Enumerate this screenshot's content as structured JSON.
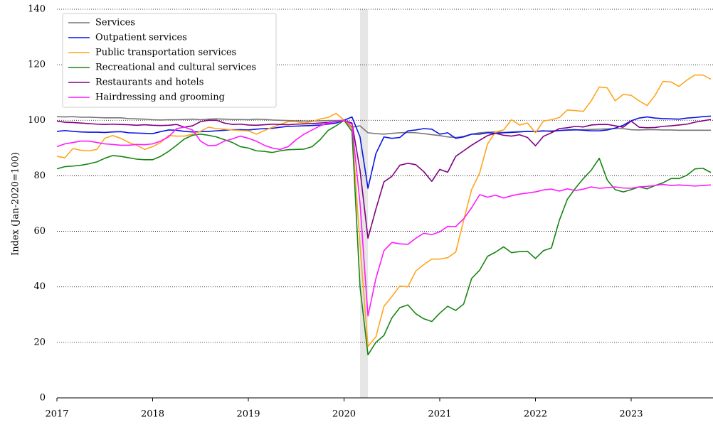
{
  "chart_data": {
    "type": "line",
    "ylabel": "Index (Jan-2020=100)",
    "x": [
      2017,
      2017.083,
      2017.167,
      2017.25,
      2017.333,
      2017.417,
      2017.5,
      2017.583,
      2017.667,
      2017.75,
      2017.833,
      2017.917,
      2018,
      2018.083,
      2018.167,
      2018.25,
      2018.333,
      2018.417,
      2018.5,
      2018.583,
      2018.667,
      2018.75,
      2018.833,
      2018.917,
      2019,
      2019.083,
      2019.167,
      2019.25,
      2019.333,
      2019.417,
      2019.5,
      2019.583,
      2019.667,
      2019.75,
      2019.833,
      2019.917,
      2020,
      2020.083,
      2020.167,
      2020.25,
      2020.333,
      2020.417,
      2020.5,
      2020.583,
      2020.667,
      2020.75,
      2020.833,
      2020.917,
      2021,
      2021.083,
      2021.167,
      2021.25,
      2021.333,
      2021.417,
      2021.5,
      2021.583,
      2021.667,
      2021.75,
      2021.833,
      2021.917,
      2022,
      2022.083,
      2022.167,
      2022.25,
      2022.333,
      2022.417,
      2022.5,
      2022.583,
      2022.667,
      2022.75,
      2022.833,
      2022.917,
      2023,
      2023.083,
      2023.167,
      2023.25,
      2023.333,
      2023.417,
      2023.5,
      2023.583,
      2023.667,
      2023.75,
      2023.833
    ],
    "series": [
      {
        "name": "Services",
        "color": "#777777",
        "values": [
          101.3,
          101.2,
          101.3,
          101.1,
          101.1,
          101,
          100.9,
          100.9,
          100.9,
          100.6,
          100.5,
          100.4,
          100.2,
          100.1,
          100.2,
          100.2,
          100.3,
          100.4,
          100.2,
          100.4,
          100.5,
          100.4,
          100.3,
          100.3,
          100.2,
          100.4,
          100.3,
          100.1,
          100,
          99.9,
          99.8,
          99.7,
          99.7,
          99.8,
          99.9,
          99.9,
          100,
          97.5,
          98,
          95.5,
          95.2,
          95,
          95.3,
          95.5,
          95.6,
          95.5,
          95.2,
          94.8,
          94.5,
          94,
          93.8,
          94.2,
          95,
          95.5,
          95.7,
          95.8,
          95.6,
          95.8,
          95.9,
          96,
          96,
          96.1,
          96.2,
          96.3,
          96.4,
          96.5,
          96.6,
          96.7,
          96.8,
          96.9,
          97,
          97,
          96.6,
          96.5,
          96.6,
          96.6,
          96.5,
          96.5,
          96.4,
          96.4,
          96.4,
          96.4,
          96.4
        ]
      },
      {
        "name": "Outpatient services",
        "color": "#0a14e6",
        "values": [
          96,
          96.3,
          96,
          95.8,
          95.7,
          95.7,
          95.6,
          95.8,
          95.9,
          95.5,
          95.4,
          95.3,
          95.2,
          95.9,
          96.5,
          96.4,
          96,
          95.8,
          95.9,
          96,
          96.2,
          96.4,
          96.6,
          96.6,
          96.5,
          96.8,
          97,
          97.1,
          97.5,
          97.8,
          97.9,
          98,
          98.1,
          98.3,
          98.6,
          99,
          100,
          101.2,
          94,
          75.5,
          88,
          94,
          93.5,
          93.8,
          96.2,
          96.5,
          97,
          96.8,
          95,
          95.5,
          93.5,
          94,
          95,
          95,
          95.5,
          95.3,
          95.5,
          95.6,
          95.8,
          96,
          96,
          96.2,
          96,
          96.3,
          96.5,
          96.6,
          96.4,
          96.2,
          96.2,
          96.5,
          97.2,
          98.2,
          99.8,
          100.8,
          101.2,
          100.8,
          100.6,
          100.5,
          100.4,
          100.8,
          101,
          101.3,
          101.5
        ]
      },
      {
        "name": "Public transportation services",
        "color": "#ffa51f",
        "values": [
          87,
          86.5,
          89.8,
          89.2,
          89,
          89.5,
          93.5,
          94.5,
          93.5,
          92,
          91,
          89.5,
          90.5,
          92,
          94.5,
          94.3,
          94.3,
          95,
          96,
          97.5,
          97,
          96.8,
          96.5,
          96.3,
          96.2,
          95,
          96.3,
          97.5,
          98.5,
          99.5,
          99.5,
          99,
          99.5,
          100.5,
          101,
          102.5,
          100,
          97,
          55,
          18.5,
          22,
          33,
          36.5,
          40.3,
          40,
          45.7,
          48,
          50,
          50,
          50.5,
          52.5,
          64,
          75,
          81,
          91.5,
          95.8,
          96.5,
          100.2,
          98.3,
          99,
          95.5,
          99.7,
          100.2,
          101,
          103.7,
          103.5,
          103.2,
          107,
          112,
          111.7,
          107,
          109.3,
          109,
          107,
          105.3,
          109,
          114,
          113.8,
          112.2,
          114.5,
          116.3,
          116.3,
          114.8
        ]
      },
      {
        "name": "Recreational and cultural services",
        "color": "#168512",
        "values": [
          82.5,
          83.3,
          83.5,
          83.8,
          84.3,
          85,
          86.3,
          87.3,
          87,
          86.5,
          86,
          85.8,
          85.8,
          87,
          88.8,
          91,
          93.3,
          94.6,
          95,
          94.6,
          94,
          93,
          92,
          90.5,
          90,
          89,
          88.8,
          88.4,
          89,
          89.4,
          89.5,
          89.6,
          90.5,
          93,
          96.3,
          98,
          100,
          96,
          40,
          15.5,
          20,
          22.5,
          28.8,
          32.5,
          33.5,
          30.3,
          28.5,
          27.5,
          30.5,
          33,
          31.5,
          33.8,
          43,
          46,
          51,
          52.5,
          54.4,
          52.3,
          52.7,
          52.8,
          50.2,
          53,
          54,
          64,
          71.5,
          75.5,
          79,
          82,
          86.3,
          78.5,
          75,
          74.2,
          75,
          76,
          75.3,
          76.5,
          77.5,
          79,
          79,
          80.2,
          82.5,
          82.7,
          81.2
        ]
      },
      {
        "name": "Restaurants and hotels",
        "color": "#800080",
        "values": [
          99.7,
          99.3,
          99.2,
          99,
          98.8,
          98.6,
          98.5,
          98.6,
          98.5,
          98.4,
          98.2,
          98.4,
          98.2,
          98.1,
          98.2,
          98.5,
          97.5,
          98,
          99.5,
          100,
          100,
          99,
          98.5,
          98.6,
          98.3,
          98.2,
          98.4,
          98.6,
          98.5,
          98.4,
          98.6,
          98.7,
          98.8,
          99,
          99.2,
          99.5,
          100,
          99,
          82,
          57.5,
          68,
          77.8,
          79.8,
          83.8,
          84.5,
          84,
          81.5,
          78,
          82.3,
          81.3,
          87,
          89,
          91,
          92.8,
          94.5,
          95.3,
          94.6,
          94.3,
          94.8,
          93.8,
          90.8,
          94.2,
          95.5,
          97,
          97.3,
          97.8,
          97.6,
          98.3,
          98.5,
          98.5,
          98,
          97.5,
          99.7,
          97.5,
          97.3,
          97.4,
          97.8,
          98,
          98.3,
          98.6,
          99.3,
          99.8,
          100.3
        ]
      },
      {
        "name": "Hairdressing and grooming",
        "color": "#ff1aff",
        "values": [
          90.5,
          91.5,
          92,
          92.5,
          92.5,
          92,
          91.5,
          91.3,
          91,
          91,
          91.3,
          91.2,
          91.5,
          92.5,
          94,
          97,
          97.5,
          96.5,
          92.5,
          90.8,
          91,
          92.5,
          93.3,
          94.3,
          93.5,
          92.5,
          91,
          90,
          89.5,
          90.5,
          93,
          95,
          96.5,
          98,
          99,
          99.5,
          100,
          98.5,
          70,
          29.5,
          43,
          53,
          56,
          55.5,
          55.3,
          57.5,
          59.3,
          58.8,
          59.8,
          61.8,
          61.7,
          64.5,
          68.5,
          73.2,
          72.3,
          73,
          72,
          72.8,
          73.4,
          73.8,
          74.2,
          74.9,
          75.2,
          74.5,
          75.3,
          74.7,
          75.2,
          76,
          75.5,
          75.7,
          76,
          75.6,
          75.5,
          76,
          76.2,
          76.5,
          76.9,
          76.5,
          76.7,
          76.5,
          76.3,
          76.5,
          76.7
        ]
      }
    ],
    "shaded_region": [
      2020.167,
      2020.25
    ],
    "shade_color": "#e6e6e6",
    "xlim": [
      2017,
      2023.833
    ],
    "xticks": [
      2017,
      2018,
      2019,
      2020,
      2021,
      2022,
      2023
    ],
    "ylim": [
      0,
      140
    ],
    "yticks": [
      0,
      20,
      40,
      60,
      80,
      100,
      120,
      140
    ],
    "grid": true,
    "legend": "upper left"
  }
}
